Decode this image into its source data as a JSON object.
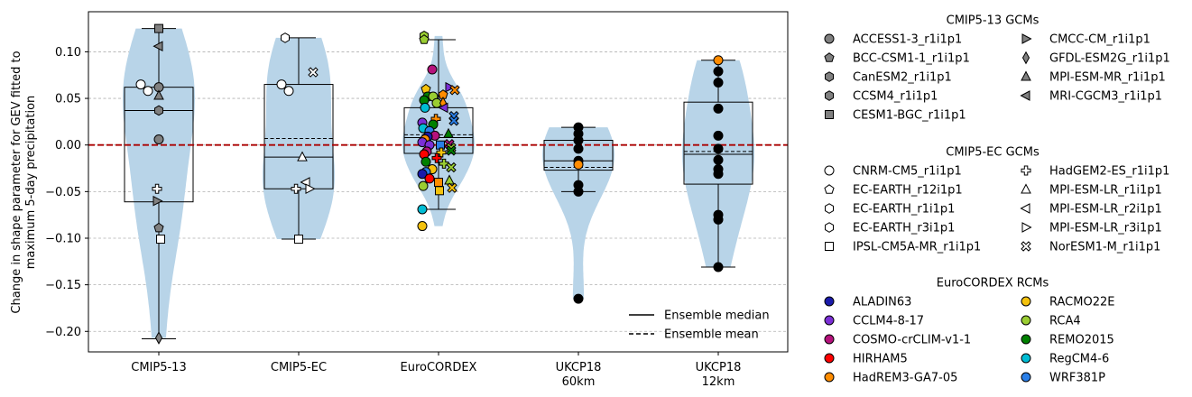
{
  "chart_data": {
    "type": "violin-box-strip",
    "ylabel_line1": "Change in shape parameter for GEV fitted to",
    "ylabel_line2": "maximum 5-day precipitation",
    "ylim": [
      -0.222,
      0.143
    ],
    "yticks": [
      0.1,
      0.05,
      0.0,
      -0.05,
      -0.1,
      -0.15,
      -0.2
    ],
    "ytick_labels": [
      "0.10",
      "0.05",
      "0.00",
      "−0.05",
      "−0.10",
      "−0.15",
      "−0.20"
    ],
    "grid": "y-dashed",
    "reference_line": 0.0,
    "categories": [
      {
        "label": "CMIP5-13",
        "sublabel": "",
        "box": {
          "q1": -0.061,
          "median": 0.037,
          "q3": 0.062,
          "mean": 0.037,
          "wlow": -0.208,
          "whigh": 0.125
        },
        "points": [
          {
            "y": 0.125,
            "m": "s",
            "c": "#808080",
            "dx": 0
          },
          {
            "y": 0.106,
            "m": "<",
            "c": "#808080",
            "dx": 0
          },
          {
            "y": 0.065,
            "m": "o",
            "c": "#ffffff",
            "dx": -20
          },
          {
            "y": 0.062,
            "m": "o",
            "c": "#808080",
            "dx": 0
          },
          {
            "y": 0.058,
            "m": "o",
            "c": "#ffffff",
            "dx": -12
          },
          {
            "y": 0.053,
            "m": "^",
            "c": "#808080",
            "dx": 0
          },
          {
            "y": 0.037,
            "m": "h",
            "c": "#808080",
            "dx": 0
          },
          {
            "y": 0.006,
            "m": "o",
            "c": "#808080",
            "dx": 0
          },
          {
            "y": -0.047,
            "m": "P",
            "c": "#ffffff",
            "dx": -2
          },
          {
            "y": -0.06,
            "m": ">",
            "c": "#808080",
            "dx": -2
          },
          {
            "y": -0.089,
            "m": "p",
            "c": "#808080",
            "dx": 0
          },
          {
            "y": -0.101,
            "m": "s",
            "c": "#ffffff",
            "dx": 2
          },
          {
            "y": -0.207,
            "m": "d",
            "c": "#808080",
            "dx": 0
          }
        ]
      },
      {
        "label": "CMIP5-EC",
        "sublabel": "",
        "box": {
          "q1": -0.047,
          "median": -0.013,
          "q3": 0.065,
          "mean": 0.007,
          "wlow": -0.101,
          "whigh": 0.115
        },
        "points": [
          {
            "y": 0.115,
            "m": "h",
            "c": "#ffffff",
            "dx": -15
          },
          {
            "y": 0.078,
            "m": "X",
            "c": "#ffffff",
            "dx": 16
          },
          {
            "y": 0.065,
            "m": "o",
            "c": "#ffffff",
            "dx": -19
          },
          {
            "y": 0.058,
            "m": "o",
            "c": "#ffffff",
            "dx": -11
          },
          {
            "y": -0.013,
            "m": "^",
            "c": "#ffffff",
            "dx": 4
          },
          {
            "y": -0.04,
            "m": "<",
            "c": "#ffffff",
            "dx": 8
          },
          {
            "y": -0.047,
            "m": "P",
            "c": "#ffffff",
            "dx": -3
          },
          {
            "y": -0.047,
            "m": ">",
            "c": "#ffffff",
            "dx": 12
          },
          {
            "y": -0.101,
            "m": "s",
            "c": "#ffffff",
            "dx": 0
          }
        ]
      },
      {
        "label": "EuroCORDEX",
        "sublabel": "",
        "box": {
          "q1": -0.009,
          "median": 0.008,
          "q3": 0.04,
          "mean": 0.011,
          "wlow": -0.069,
          "whigh": 0.113
        },
        "points": [
          {
            "y": 0.117,
            "m": "h",
            "c": "#9acd32",
            "dx": -16
          },
          {
            "y": 0.113,
            "m": "p",
            "c": "#9acd32",
            "dx": -16
          },
          {
            "y": 0.081,
            "m": "o",
            "c": "#b5127c",
            "dx": -7
          },
          {
            "y": 0.06,
            "m": "p",
            "c": "#f4c20d",
            "dx": -14
          },
          {
            "y": 0.062,
            "m": ">",
            "c": "#7b2fd6",
            "dx": 12
          },
          {
            "y": 0.059,
            "m": "X",
            "c": "#ff8c00",
            "dx": 18
          },
          {
            "y": 0.054,
            "m": "p",
            "c": "#ff8c00",
            "dx": 5
          },
          {
            "y": 0.052,
            "m": "o",
            "c": "#008000",
            "dx": -12
          },
          {
            "y": 0.052,
            "m": "o",
            "c": "#9acd32",
            "dx": -6
          },
          {
            "y": 0.048,
            "m": "o",
            "c": "#008000",
            "dx": -16
          },
          {
            "y": 0.045,
            "m": "o",
            "c": "#9acd32",
            "dx": -2
          },
          {
            "y": 0.045,
            "m": "d",
            "c": "#ff8c00",
            "dx": 5
          },
          {
            "y": 0.04,
            "m": "<",
            "c": "#7b2fd6",
            "dx": 6
          },
          {
            "y": 0.04,
            "m": "o",
            "c": "#00bcd4",
            "dx": -15
          },
          {
            "y": 0.031,
            "m": "X",
            "c": "#2a7fe8",
            "dx": 17
          },
          {
            "y": 0.028,
            "m": "P",
            "c": "#ff8c00",
            "dx": -3
          },
          {
            "y": 0.026,
            "m": "X",
            "c": "#2a7fe8",
            "dx": 17
          },
          {
            "y": 0.024,
            "m": "o",
            "c": "#7b2fd6",
            "dx": -18
          },
          {
            "y": 0.022,
            "m": "o",
            "c": "#008000",
            "dx": -6
          },
          {
            "y": 0.018,
            "m": "o",
            "c": "#00bcd4",
            "dx": -17
          },
          {
            "y": 0.015,
            "m": "o",
            "c": "#2a7fe8",
            "dx": -10
          },
          {
            "y": 0.012,
            "m": "^",
            "c": "#008000",
            "dx": 11
          },
          {
            "y": 0.01,
            "m": "o",
            "c": "#b5127c",
            "dx": -4
          },
          {
            "y": 0.009,
            "m": "o",
            "c": "#1a1aaa",
            "dx": -12
          },
          {
            "y": 0.006,
            "m": "o",
            "c": "#ff8c00",
            "dx": -15
          },
          {
            "y": 0.003,
            "m": "o",
            "c": "#7b2fd6",
            "dx": -18
          },
          {
            "y": 0.0,
            "m": "o",
            "c": "#7b2fd6",
            "dx": -10
          },
          {
            "y": 0.001,
            "m": "X",
            "c": "#b5127c",
            "dx": 12
          },
          {
            "y": 0.0,
            "m": "s",
            "c": "#2a7fe8",
            "dx": 2
          },
          {
            "y": -0.003,
            "m": "X",
            "c": "#9acd32",
            "dx": 14
          },
          {
            "y": -0.006,
            "m": "X",
            "c": "#008000",
            "dx": 14
          },
          {
            "y": -0.007,
            "m": "o",
            "c": "#b5127c",
            "dx": -13
          },
          {
            "y": -0.008,
            "m": "P",
            "c": "#f4c20d",
            "dx": 3
          },
          {
            "y": -0.01,
            "m": "o",
            "c": "#ff0000",
            "dx": -16
          },
          {
            "y": -0.014,
            "m": "P",
            "c": "#ff0000",
            "dx": -2
          },
          {
            "y": -0.018,
            "m": "o",
            "c": "#008000",
            "dx": -14
          },
          {
            "y": -0.02,
            "m": "P",
            "c": "#9acd32",
            "dx": 6
          },
          {
            "y": -0.024,
            "m": "X",
            "c": "#9acd32",
            "dx": 14
          },
          {
            "y": -0.026,
            "m": "o",
            "c": "#f4c20d",
            "dx": -7
          },
          {
            "y": -0.029,
            "m": "o",
            "c": "#2a7fe8",
            "dx": -14
          },
          {
            "y": -0.031,
            "m": "o",
            "c": "#1a1aaa",
            "dx": -18
          },
          {
            "y": -0.036,
            "m": "o",
            "c": "#ff0000",
            "dx": -10
          },
          {
            "y": -0.038,
            "m": "^",
            "c": "#9acd32",
            "dx": 12
          },
          {
            "y": -0.04,
            "m": "s",
            "c": "#ff8c00",
            "dx": 0
          },
          {
            "y": -0.044,
            "m": "o",
            "c": "#9acd32",
            "dx": -17
          },
          {
            "y": -0.046,
            "m": "X",
            "c": "#f4c20d",
            "dx": 15
          },
          {
            "y": -0.049,
            "m": "s",
            "c": "#f4c20d",
            "dx": 1
          },
          {
            "y": -0.069,
            "m": "o",
            "c": "#00bcd4",
            "dx": -18
          },
          {
            "y": -0.087,
            "m": "o",
            "c": "#f4c20d",
            "dx": -18
          }
        ]
      },
      {
        "label": "UKCP18",
        "sublabel": "60km",
        "box": {
          "q1": -0.027,
          "median": -0.017,
          "q3": 0.005,
          "mean": -0.024,
          "wlow": -0.05,
          "whigh": 0.019
        },
        "points": [
          {
            "y": 0.019,
            "m": "o",
            "c": "#000000",
            "dx": 0
          },
          {
            "y": 0.012,
            "m": "o",
            "c": "#000000",
            "dx": 0
          },
          {
            "y": 0.005,
            "m": "o",
            "c": "#000000",
            "dx": 0
          },
          {
            "y": -0.004,
            "m": "o",
            "c": "#000000",
            "dx": 0
          },
          {
            "y": -0.017,
            "m": "o",
            "c": "#000000",
            "dx": 0
          },
          {
            "y": -0.021,
            "m": "o",
            "c": "#ff8c00",
            "dx": 0
          },
          {
            "y": -0.043,
            "m": "o",
            "c": "#000000",
            "dx": 0
          },
          {
            "y": -0.05,
            "m": "o",
            "c": "#000000",
            "dx": 0
          },
          {
            "y": -0.165,
            "m": "o",
            "c": "#000000",
            "dx": 0
          }
        ]
      },
      {
        "label": "UKCP18",
        "sublabel": "12km",
        "box": {
          "q1": -0.042,
          "median": -0.01,
          "q3": 0.046,
          "mean": -0.007,
          "wlow": -0.131,
          "whigh": 0.091
        },
        "points": [
          {
            "y": 0.091,
            "m": "o",
            "c": "#ff8c00",
            "dx": 0
          },
          {
            "y": 0.079,
            "m": "o",
            "c": "#000000",
            "dx": 0
          },
          {
            "y": 0.067,
            "m": "o",
            "c": "#000000",
            "dx": 0
          },
          {
            "y": 0.039,
            "m": "o",
            "c": "#000000",
            "dx": 0
          },
          {
            "y": 0.01,
            "m": "o",
            "c": "#000000",
            "dx": 0
          },
          {
            "y": -0.004,
            "m": "o",
            "c": "#000000",
            "dx": 0
          },
          {
            "y": -0.016,
            "m": "o",
            "c": "#000000",
            "dx": 0
          },
          {
            "y": -0.026,
            "m": "o",
            "c": "#000000",
            "dx": 0
          },
          {
            "y": -0.031,
            "m": "o",
            "c": "#000000",
            "dx": 0
          },
          {
            "y": -0.075,
            "m": "o",
            "c": "#000000",
            "dx": 0
          },
          {
            "y": -0.08,
            "m": "o",
            "c": "#000000",
            "dx": 0
          },
          {
            "y": -0.131,
            "m": "o",
            "c": "#000000",
            "dx": 0
          }
        ]
      }
    ],
    "violin_color": "#b8d4e8",
    "reference_line_color": "#aa0000",
    "inner_legend": {
      "placement": "lower-right",
      "entries": [
        {
          "label": "Ensemble median",
          "style": "solid"
        },
        {
          "label": "Ensemble mean",
          "style": "dashed"
        }
      ]
    }
  },
  "legend": {
    "groups": [
      {
        "title": "CMIP5-13 GCMs",
        "fill": "#808080",
        "col1": [
          {
            "label": "ACCESS1-3_r1i1p1",
            "m": "o"
          },
          {
            "label": "BCC-CSM1-1_r1i1p1",
            "m": "p"
          },
          {
            "label": "CanESM2_r1i1p1",
            "m": "h"
          },
          {
            "label": "CCSM4_r1i1p1",
            "m": "h"
          },
          {
            "label": "CESM1-BGC_r1i1p1",
            "m": "s"
          }
        ],
        "col2": [
          {
            "label": "CMCC-CM_r1i1p1",
            "m": ">"
          },
          {
            "label": "GFDL-ESM2G_r1i1p1",
            "m": "d"
          },
          {
            "label": "MPI-ESM-MR_r1i1p1",
            "m": "^"
          },
          {
            "label": "MRI-CGCM3_r1i1p1",
            "m": "<"
          }
        ]
      },
      {
        "title": "CMIP5-EC GCMs",
        "fill": "#ffffff",
        "col1": [
          {
            "label": "CNRM-CM5_r1i1p1",
            "m": "o"
          },
          {
            "label": "EC-EARTH_r12i1p1",
            "m": "p"
          },
          {
            "label": "EC-EARTH_r1i1p1",
            "m": "h"
          },
          {
            "label": "EC-EARTH_r3i1p1",
            "m": "h"
          },
          {
            "label": "IPSL-CM5A-MR_r1i1p1",
            "m": "s"
          }
        ],
        "col2": [
          {
            "label": "HadGEM2-ES_r1i1p1",
            "m": "P"
          },
          {
            "label": "MPI-ESM-LR_r1i1p1",
            "m": "^"
          },
          {
            "label": "MPI-ESM-LR_r2i1p1",
            "m": "<"
          },
          {
            "label": "MPI-ESM-LR_r3i1p1",
            "m": ">"
          },
          {
            "label": "NorESM1-M_r1i1p1",
            "m": "X"
          }
        ]
      },
      {
        "title": "EuroCORDEX RCMs",
        "fill": "",
        "col1": [
          {
            "label": "ALADIN63",
            "m": "o",
            "c": "#1a1aaa"
          },
          {
            "label": "CCLM4-8-17",
            "m": "o",
            "c": "#7b2fd6"
          },
          {
            "label": "COSMO-crCLIM-v1-1",
            "m": "o",
            "c": "#b5127c"
          },
          {
            "label": "HIRHAM5",
            "m": "o",
            "c": "#ff0000"
          },
          {
            "label": "HadREM3-GA7-05",
            "m": "o",
            "c": "#ff8c00"
          }
        ],
        "col2": [
          {
            "label": "RACMO22E",
            "m": "o",
            "c": "#f4c20d"
          },
          {
            "label": "RCA4",
            "m": "o",
            "c": "#9acd32"
          },
          {
            "label": "REMO2015",
            "m": "o",
            "c": "#008000"
          },
          {
            "label": "RegCM4-6",
            "m": "o",
            "c": "#00bcd4"
          },
          {
            "label": "WRF381P",
            "m": "o",
            "c": "#2a7fe8"
          }
        ]
      }
    ]
  }
}
